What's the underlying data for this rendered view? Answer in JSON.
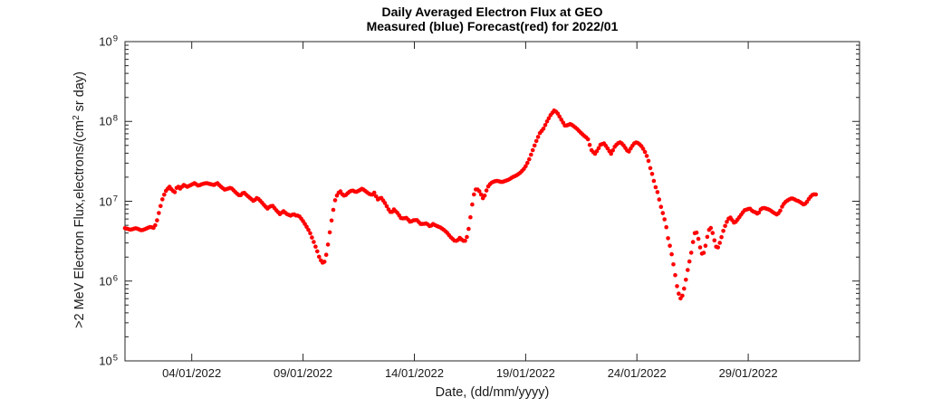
{
  "chart": {
    "title_line1": "Daily Averaged Electron Flux at GEO",
    "title_line2": "Measured (blue) Forecast(red) for 2022/01",
    "xlabel": "Date, (dd/mm/yyyy)",
    "ylabel_pre": ">2 MeV Electron Flux,electrons/(cm",
    "ylabel_sup": "2",
    "ylabel_post": " sr day)",
    "tick_base": "10"
  },
  "chart_data": {
    "type": "scatter",
    "title": "Daily Averaged Electron Flux at GEO — Measured (blue) Forecast(red) for 2022/01",
    "xlabel": "Date, (dd/mm/yyyy)",
    "ylabel": ">2 MeV Electron Flux,electrons/(cm2 sr day)",
    "axis_color": "#262626",
    "grid": false,
    "legend": "none",
    "x_axis": {
      "unit": "day of 2022/01 (fractional, 32=01/02)",
      "range_days": [
        1,
        34
      ],
      "tick_days": [
        4,
        9,
        14,
        19,
        24,
        29
      ],
      "tick_labels": [
        "04/01/2022",
        "09/01/2022",
        "14/01/2022",
        "19/01/2022",
        "24/01/2022",
        "29/01/2022"
      ]
    },
    "y_axis": {
      "scale": "log",
      "range": [
        100000.0,
        1000000000.0
      ],
      "tick_exponents": [
        5,
        6,
        7,
        8,
        9
      ],
      "minor_ticks": true
    },
    "marker": {
      "shape": "dot",
      "radius_px": 2.3,
      "sample_step_days": 0.08
    },
    "series": [
      {
        "name": "Forecast",
        "color": "#ff0000",
        "points": [
          [
            1.0,
            4600000.0
          ],
          [
            1.25,
            4400000.0
          ],
          [
            1.5,
            4600000.0
          ],
          [
            1.75,
            4300000.0
          ],
          [
            2.0,
            4600000.0
          ],
          [
            2.15,
            4800000.0
          ],
          [
            2.27,
            4600000.0
          ],
          [
            2.4,
            5200000.0
          ],
          [
            2.55,
            7700000.0
          ],
          [
            2.7,
            11100000.0
          ],
          [
            2.85,
            13700000.0
          ],
          [
            3.0,
            15200000.0
          ],
          [
            3.12,
            13700000.0
          ],
          [
            3.24,
            13000000.0
          ],
          [
            3.36,
            15600000.0
          ],
          [
            3.48,
            14400000.0
          ],
          [
            3.64,
            16000000.0
          ],
          [
            3.8,
            15200000.0
          ],
          [
            3.97,
            16000000.0
          ],
          [
            4.13,
            16900000.0
          ],
          [
            4.3,
            15600000.0
          ],
          [
            4.46,
            16400000.0
          ],
          [
            4.66,
            16900000.0
          ],
          [
            4.82,
            16400000.0
          ],
          [
            5.0,
            16000000.0
          ],
          [
            5.15,
            16900000.0
          ],
          [
            5.31,
            15200000.0
          ],
          [
            5.48,
            14000000.0
          ],
          [
            5.64,
            14400000.0
          ],
          [
            5.76,
            14800000.0
          ],
          [
            5.88,
            13700000.0
          ],
          [
            6.05,
            12300000.0
          ],
          [
            6.17,
            11700000.0
          ],
          [
            6.33,
            13000000.0
          ],
          [
            6.5,
            11700000.0
          ],
          [
            6.65,
            10800000.0
          ],
          [
            6.78,
            10000000.0
          ],
          [
            6.94,
            11100000.0
          ],
          [
            7.1,
            10000000.0
          ],
          [
            7.27,
            8800000.0
          ],
          [
            7.4,
            8100000.0
          ],
          [
            7.51,
            8600000.0
          ],
          [
            7.63,
            8800000.0
          ],
          [
            7.8,
            7700000.0
          ],
          [
            7.96,
            6900000.0
          ],
          [
            8.12,
            7500000.0
          ],
          [
            8.28,
            6900000.0
          ],
          [
            8.44,
            6600000.0
          ],
          [
            8.57,
            6900000.0
          ],
          [
            8.7,
            6600000.0
          ],
          [
            8.81,
            6600000.0
          ],
          [
            8.97,
            5800000.0
          ],
          [
            9.14,
            4900000.0
          ],
          [
            9.3,
            4100000.0
          ],
          [
            9.46,
            3200000.0
          ],
          [
            9.63,
            2400000.0
          ],
          [
            9.75,
            1900000.0
          ],
          [
            9.87,
            1700000.0
          ],
          [
            9.95,
            1700000.0
          ],
          [
            10.07,
            2300000.0
          ],
          [
            10.19,
            3900000.0
          ],
          [
            10.32,
            6800000.0
          ],
          [
            10.44,
            10300000.0
          ],
          [
            10.56,
            12600000.0
          ],
          [
            10.68,
            13300000.0
          ],
          [
            10.8,
            11700000.0
          ],
          [
            10.93,
            12000000.0
          ],
          [
            11.05,
            13000000.0
          ],
          [
            11.21,
            13700000.0
          ],
          [
            11.37,
            13000000.0
          ],
          [
            11.54,
            13700000.0
          ],
          [
            11.66,
            14400000.0
          ],
          [
            11.82,
            13300000.0
          ],
          [
            11.98,
            12300000.0
          ],
          [
            12.11,
            12000000.0
          ],
          [
            12.19,
            13000000.0
          ],
          [
            12.35,
            10500000.0
          ],
          [
            12.51,
            11100000.0
          ],
          [
            12.68,
            9500000.0
          ],
          [
            12.84,
            7900000.0
          ],
          [
            12.96,
            7100000.0
          ],
          [
            13.08,
            7900000.0
          ],
          [
            13.25,
            7100000.0
          ],
          [
            13.41,
            6100000.0
          ],
          [
            13.53,
            6100000.0
          ],
          [
            13.65,
            6200000.0
          ],
          [
            13.81,
            5500000.0
          ],
          [
            13.98,
            5800000.0
          ],
          [
            14.14,
            5800000.0
          ],
          [
            14.26,
            5200000.0
          ],
          [
            14.43,
            5200000.0
          ],
          [
            14.55,
            5300000.0
          ],
          [
            14.71,
            4800000.0
          ],
          [
            14.83,
            5200000.0
          ],
          [
            15.0,
            4900000.0
          ],
          [
            15.16,
            4700000.0
          ],
          [
            15.32,
            4400000.0
          ],
          [
            15.48,
            4000000.0
          ],
          [
            15.65,
            3500000.0
          ],
          [
            15.81,
            3200000.0
          ],
          [
            15.93,
            3200000.0
          ],
          [
            16.05,
            3500000.0
          ],
          [
            16.17,
            3200000.0
          ],
          [
            16.3,
            3200000.0
          ],
          [
            16.38,
            3700000.0
          ],
          [
            16.46,
            4800000.0
          ],
          [
            16.54,
            6900000.0
          ],
          [
            16.62,
            10000000.0
          ],
          [
            16.7,
            13000000.0
          ],
          [
            16.78,
            14400000.0
          ],
          [
            16.9,
            13700000.0
          ],
          [
            17.03,
            11700000.0
          ],
          [
            17.11,
            10500000.0
          ],
          [
            17.19,
            12600000.0
          ],
          [
            17.31,
            15200000.0
          ],
          [
            17.44,
            16900000.0
          ],
          [
            17.6,
            17800000.0
          ],
          [
            17.76,
            18000000.0
          ],
          [
            17.92,
            17300000.0
          ],
          [
            18.09,
            18000000.0
          ],
          [
            18.25,
            18700000.0
          ],
          [
            18.41,
            20000000.0
          ],
          [
            18.58,
            21000000.0
          ],
          [
            18.74,
            22500000.0
          ],
          [
            18.9,
            25000000.0
          ],
          [
            19.02,
            28000000.0
          ],
          [
            19.15,
            33000000.0
          ],
          [
            19.31,
            43000000.0
          ],
          [
            19.47,
            56000000.0
          ],
          [
            19.63,
            71000000.0
          ],
          [
            19.8,
            81000000.0
          ],
          [
            19.96,
            100000000.0
          ],
          [
            20.12,
            120000000.0
          ],
          [
            20.28,
            137000000.0
          ],
          [
            20.41,
            130000000.0
          ],
          [
            20.53,
            114000000.0
          ],
          [
            20.65,
            100000000.0
          ],
          [
            20.77,
            88000000.0
          ],
          [
            20.9,
            90000000.0
          ],
          [
            21.02,
            93000000.0
          ],
          [
            21.14,
            88000000.0
          ],
          [
            21.3,
            81000000.0
          ],
          [
            21.46,
            73000000.0
          ],
          [
            21.63,
            66000000.0
          ],
          [
            21.79,
            61000000.0
          ],
          [
            21.95,
            44000000.0
          ],
          [
            22.11,
            39000000.0
          ],
          [
            22.24,
            44000000.0
          ],
          [
            22.36,
            51000000.0
          ],
          [
            22.52,
            53000000.0
          ],
          [
            22.64,
            48000000.0
          ],
          [
            22.77,
            42000000.0
          ],
          [
            22.85,
            39000000.0
          ],
          [
            22.97,
            47000000.0
          ],
          [
            23.13,
            53000000.0
          ],
          [
            23.26,
            55000000.0
          ],
          [
            23.38,
            51000000.0
          ],
          [
            23.54,
            44000000.0
          ],
          [
            23.62,
            41000000.0
          ],
          [
            23.74,
            47000000.0
          ],
          [
            23.87,
            53000000.0
          ],
          [
            23.99,
            55000000.0
          ],
          [
            24.11,
            52000000.0
          ],
          [
            24.23,
            48000000.0
          ],
          [
            24.35,
            42000000.0
          ],
          [
            24.44,
            37000000.0
          ],
          [
            24.52,
            32000000.0
          ],
          [
            24.6,
            26000000.0
          ],
          [
            24.68,
            22000000.0
          ],
          [
            24.76,
            18000000.0
          ],
          [
            24.84,
            15000000.0
          ],
          [
            24.92,
            13000000.0
          ],
          [
            25.0,
            10500000.0
          ],
          [
            25.08,
            8500000.0
          ],
          [
            25.16,
            7100000.0
          ],
          [
            25.25,
            5800000.0
          ],
          [
            25.33,
            4600000.0
          ],
          [
            25.41,
            3300000.0
          ],
          [
            25.49,
            2700000.0
          ],
          [
            25.57,
            2100000.0
          ],
          [
            25.65,
            1560000.0
          ],
          [
            25.73,
            1140000.0
          ],
          [
            25.81,
            830000.0
          ],
          [
            25.9,
            660000.0
          ],
          [
            25.98,
            590000.0
          ],
          [
            26.06,
            680000.0
          ],
          [
            26.14,
            850000.0
          ],
          [
            26.22,
            1110000.0
          ],
          [
            26.3,
            1480000.0
          ],
          [
            26.39,
            1920000.0
          ],
          [
            26.47,
            2500000.0
          ],
          [
            26.55,
            3500000.0
          ],
          [
            26.63,
            4300000.0
          ],
          [
            26.71,
            3900000.0
          ],
          [
            26.79,
            3100000.0
          ],
          [
            26.87,
            2400000.0
          ],
          [
            26.95,
            2100000.0
          ],
          [
            27.04,
            2400000.0
          ],
          [
            27.12,
            3200000.0
          ],
          [
            27.2,
            4000000.0
          ],
          [
            27.28,
            4800000.0
          ],
          [
            27.36,
            4450000.0
          ],
          [
            27.44,
            3600000.0
          ],
          [
            27.52,
            2900000.0
          ],
          [
            27.6,
            2500000.0
          ],
          [
            27.68,
            2800000.0
          ],
          [
            27.77,
            3300000.0
          ],
          [
            27.85,
            4000000.0
          ],
          [
            27.93,
            4700000.0
          ],
          [
            28.05,
            5600000.0
          ],
          [
            28.17,
            6400000.0
          ],
          [
            28.26,
            5900000.0
          ],
          [
            28.38,
            5300000.0
          ],
          [
            28.46,
            5600000.0
          ],
          [
            28.58,
            6200000.0
          ],
          [
            28.7,
            6900000.0
          ],
          [
            28.83,
            7700000.0
          ],
          [
            28.95,
            7900000.0
          ],
          [
            29.07,
            8100000.0
          ],
          [
            29.19,
            7500000.0
          ],
          [
            29.31,
            7300000.0
          ],
          [
            29.44,
            6900000.0
          ],
          [
            29.56,
            7900000.0
          ],
          [
            29.68,
            8300000.0
          ],
          [
            29.8,
            8100000.0
          ],
          [
            29.93,
            7900000.0
          ],
          [
            30.05,
            7500000.0
          ],
          [
            30.17,
            7100000.0
          ],
          [
            30.29,
            6800000.0
          ],
          [
            30.41,
            7300000.0
          ],
          [
            30.54,
            8800000.0
          ],
          [
            30.66,
            9750000.0
          ],
          [
            30.78,
            10300000.0
          ],
          [
            30.9,
            10800000.0
          ],
          [
            31.02,
            10800000.0
          ],
          [
            31.15,
            10300000.0
          ],
          [
            31.27,
            10000000.0
          ],
          [
            31.39,
            9500000.0
          ],
          [
            31.51,
            9000000.0
          ],
          [
            31.63,
            9750000.0
          ],
          [
            31.76,
            11100000.0
          ],
          [
            31.88,
            12000000.0
          ],
          [
            32.0,
            12300000.0
          ],
          [
            32.08,
            12000000.0
          ]
        ]
      }
    ]
  }
}
